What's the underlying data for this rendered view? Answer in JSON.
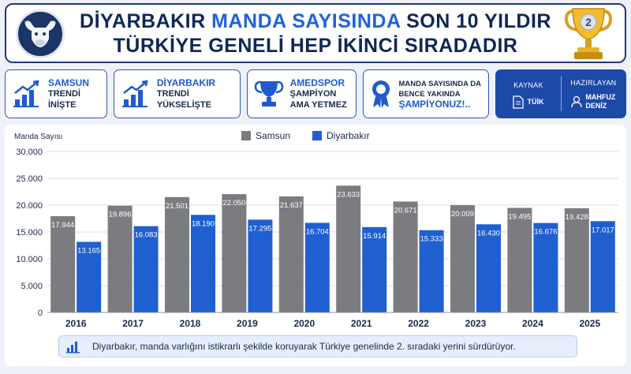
{
  "header": {
    "title_part1": "DİYARBAKIR",
    "title_highlight": "MANDA SAYISINDA",
    "title_part2": "SON 10 YILDIR",
    "subtitle": "TÜRKİYE GENELİ HEP İKİNCİ SIRADADIR",
    "trophy_number": "2",
    "logo_icon": "buffalo-icon",
    "trophy_icon": "trophy-icon"
  },
  "cards": [
    {
      "head": "SAMSUN",
      "line1": "TRENDİ",
      "line2": "İNİŞTE",
      "icon": "bar-chart-up-icon"
    },
    {
      "head": "DİYARBAKIR",
      "line1": "TRENDİ",
      "line2": "YÜKSELİŞTE",
      "icon": "bar-chart-up-icon"
    },
    {
      "head": "AMEDSPOR",
      "line1": "ŞAMPİYON",
      "line2": "AMA YETMEZ",
      "icon": "cup-icon"
    },
    {
      "line1": "MANDA SAYISINDA DA",
      "line2": "BENCE YAKINDA",
      "head": "ŞAMPİYONUZ!..",
      "icon": "award-icon"
    }
  ],
  "source": {
    "label": "KAYNAK",
    "value": "TÜİK",
    "icon": "document-icon"
  },
  "prepared": {
    "label": "HAZIRLAYAN",
    "line1": "MAHFUZ",
    "line2": "DENİZ",
    "icon": "user-icon"
  },
  "colors": {
    "samsun": "#7a7c80",
    "diyarbakir": "#1f5fd0",
    "navy": "#0f2755",
    "accent": "#1f63d6"
  },
  "chart_data": {
    "type": "bar",
    "ylabel": "Manda Sayısı",
    "ylim": [
      0,
      30000
    ],
    "yticks": [
      "0",
      "5.000",
      "10.000",
      "15.000",
      "20.000",
      "25.000",
      "30.000"
    ],
    "grid": true,
    "legend": "top-center",
    "categories": [
      "2016",
      "2017",
      "2018",
      "2019",
      "2020",
      "2021",
      "2022",
      "2023",
      "2024",
      "2025"
    ],
    "series": [
      {
        "name": "Samsun",
        "values": [
          17944,
          19896,
          21501,
          22050,
          21637,
          23633,
          20671,
          20009,
          19495,
          19428
        ],
        "labels": [
          "17.944",
          "19.896",
          "21.501",
          "22.050",
          "21.637",
          "23.633",
          "20.671",
          "20.009",
          "19.495",
          "19.428"
        ]
      },
      {
        "name": "Diyarbakır",
        "values": [
          13165,
          16083,
          18190,
          17295,
          16704,
          15914,
          15333,
          16430,
          16676,
          17017
        ],
        "labels": [
          "13.165",
          "16.083",
          "18.190",
          "17.295",
          "16.704",
          "15.914",
          "15.333",
          "16.430",
          "16.676",
          "17.017"
        ]
      }
    ]
  },
  "note": "Diyarbakır, manda varlığını istikrarlı şekilde koruyarak Türkiye genelinde 2. sıradaki yerini sürdürüyor."
}
